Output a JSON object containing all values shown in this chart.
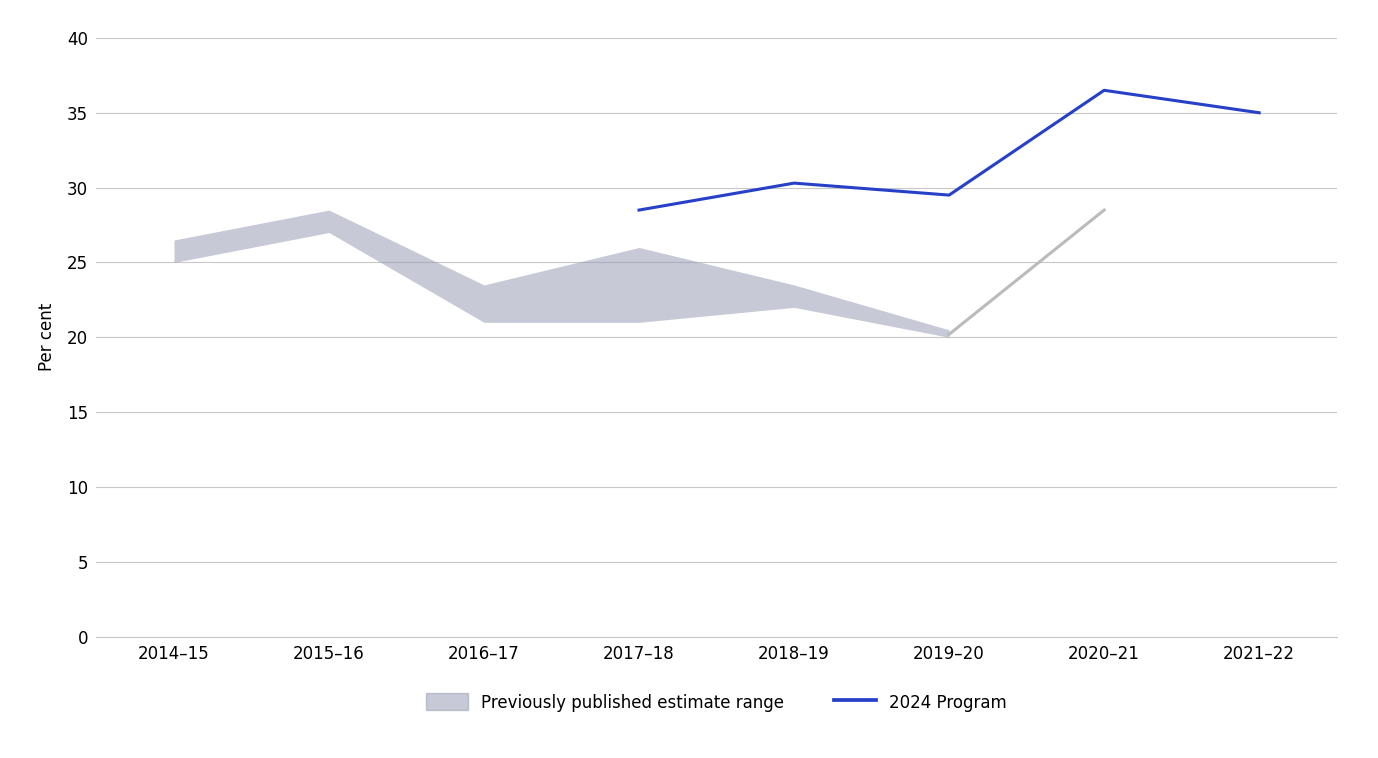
{
  "x_labels": [
    "2014–15",
    "2015–16",
    "2016–17",
    "2017–18",
    "2018–19",
    "2019–20",
    "2020–21",
    "2021–22"
  ],
  "x_positions": [
    0,
    1,
    2,
    3,
    4,
    5,
    6,
    7
  ],
  "blue_line_x": [
    3,
    4,
    5,
    6,
    7
  ],
  "blue_line_y": [
    28.5,
    30.3,
    29.5,
    36.5,
    35.0
  ],
  "grey_upper_x": [
    0,
    1,
    2,
    3,
    4,
    5
  ],
  "grey_upper_y": [
    26.5,
    28.5,
    23.5,
    26.0,
    23.5,
    20.5
  ],
  "grey_lower_x": [
    0,
    1,
    2,
    3,
    4,
    5
  ],
  "grey_lower_y": [
    25.0,
    27.0,
    21.0,
    21.0,
    22.0,
    20.0
  ],
  "grey_line_x": [
    5,
    6
  ],
  "grey_line_y": [
    20.2,
    28.5
  ],
  "blue_color": "#2640C8",
  "grey_fill_color": "#9B9DB5",
  "grey_line_color": "#BBBBBB",
  "ylabel": "Per cent",
  "ylim": [
    0,
    40
  ],
  "yticks": [
    0,
    5,
    10,
    15,
    20,
    25,
    30,
    35,
    40
  ],
  "background_color": "#FFFFFF",
  "grid_color": "#C8C8C8",
  "legend_label_grey": "Previously published estimate range",
  "legend_label_blue": "2024 Program",
  "line_width": 2.2,
  "fill_alpha": 0.55,
  "tick_fontsize": 12,
  "ylabel_fontsize": 12
}
